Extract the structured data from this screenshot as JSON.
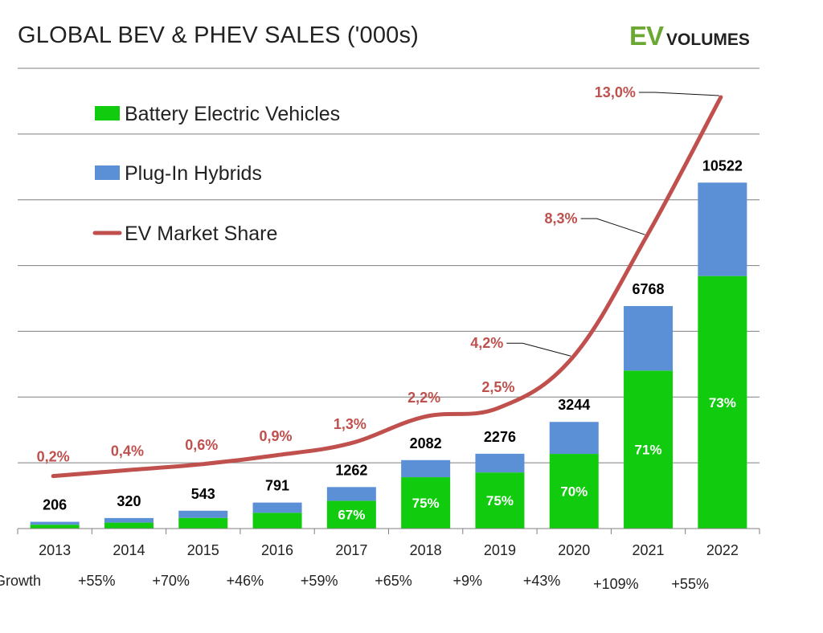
{
  "title": "GLOBAL BEV & PHEV SALES ('000s)",
  "logo": {
    "ev": "EV",
    "volumes": "VOLUMES"
  },
  "colors": {
    "bev": "#11cc0e",
    "phev": "#5b8fd6",
    "share_line": "#c0504d",
    "grid": "#7f7f7f",
    "logo_green": "#6aa832",
    "total_label": "#000000",
    "bev_pct_label": "#ffffff"
  },
  "chart_data": {
    "type": "bar",
    "stacked": true,
    "title": "GLOBAL BEV & PHEV SALES ('000s)",
    "categories": [
      "2013",
      "2014",
      "2015",
      "2016",
      "2017",
      "2018",
      "2019",
      "2020",
      "2021",
      "2022"
    ],
    "totals": [
      206,
      320,
      543,
      791,
      1262,
      2082,
      2276,
      3244,
      6768,
      10522
    ],
    "total_labels": [
      "206",
      "320",
      "543",
      "791",
      "1262",
      "2082",
      "2276",
      "3244",
      "6768",
      "10522"
    ],
    "series": [
      {
        "name": "Battery Electric Vehicles",
        "values": [
          118,
          181,
          325,
          480,
          846,
          1562,
          1707,
          2271,
          4805,
          7681
        ]
      },
      {
        "name": "Plug-In Hybrids",
        "values": [
          88,
          139,
          218,
          311,
          416,
          520,
          569,
          973,
          1963,
          2841
        ]
      }
    ],
    "bev_share_labels": [
      "",
      "",
      "",
      "",
      "67%",
      "75%",
      "75%",
      "70%",
      "71%",
      "73%"
    ],
    "ylim": [
      0,
      14000
    ],
    "y_gridlines": [
      2000,
      4000,
      6000,
      8000,
      10000,
      12000,
      14000
    ],
    "line_series": {
      "name": "EV Market Share",
      "values": [
        0.2,
        0.4,
        0.6,
        0.9,
        1.3,
        2.2,
        2.5,
        4.2,
        8.3,
        13.0
      ],
      "labels": [
        "0,2%",
        "0,4%",
        "0,6%",
        "0,9%",
        "1,3%",
        "2,2%",
        "2,5%",
        "4,2%",
        "8,3%",
        "13,0%"
      ]
    },
    "growth": {
      "label": "Growth",
      "values": [
        "",
        "+55%",
        "+70%",
        "+46%",
        "+59%",
        "+65%",
        "+9%",
        "+43%",
        "+109%",
        "+55%"
      ]
    },
    "legend": {
      "position": "top-left",
      "items": [
        "Battery Electric Vehicles",
        "Plug-In Hybrids",
        "EV Market Share"
      ]
    }
  }
}
